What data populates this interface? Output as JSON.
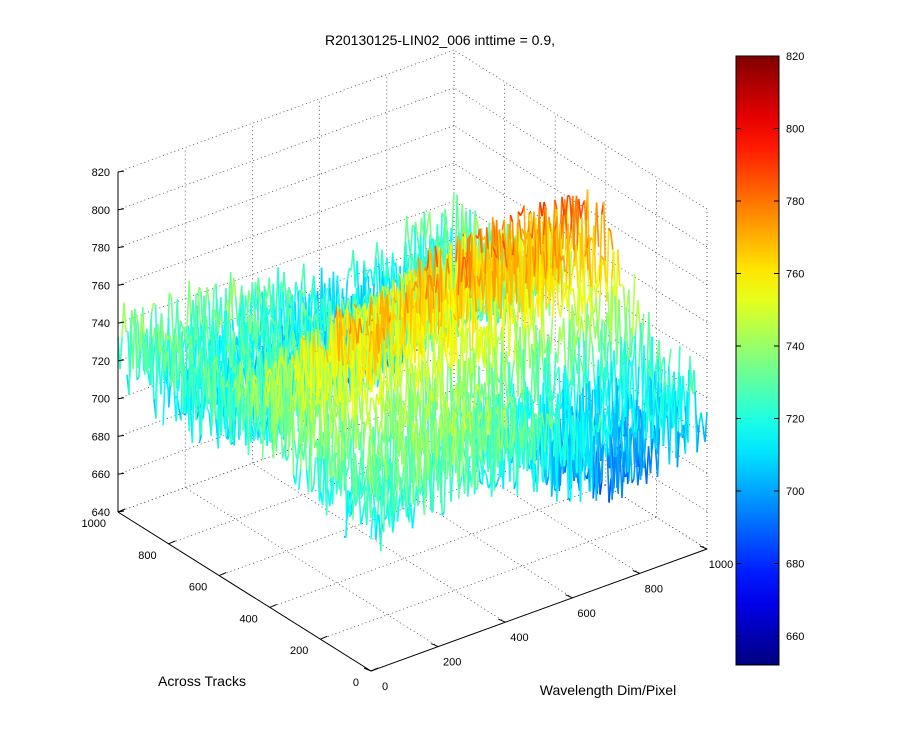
{
  "chart_data": {
    "type": "surface",
    "title": "R20130125-LIN02_006 inttime = 0.9,",
    "xlabel": "Wavelength Dim/Pixel",
    "ylabel": "Across Tracks",
    "zlabel": "",
    "xlim": [
      0,
      1000
    ],
    "ylim": [
      0,
      1000
    ],
    "zlim": [
      640,
      820
    ],
    "x_ticks": [
      0,
      200,
      400,
      600,
      800,
      1000
    ],
    "y_ticks": [
      0,
      200,
      400,
      600,
      800,
      1000
    ],
    "z_ticks": [
      640,
      660,
      680,
      700,
      720,
      740,
      760,
      780,
      800,
      820
    ],
    "colorbar_range": [
      652,
      820
    ],
    "colorbar_ticks": [
      660,
      680,
      700,
      720,
      740,
      760,
      780,
      800,
      820
    ],
    "grid": true,
    "colormap": "jet",
    "surface_summary": {
      "typical_level": 725,
      "noise_amplitude": 25,
      "peak_region_level": 790,
      "low_region_level": 670
    }
  }
}
